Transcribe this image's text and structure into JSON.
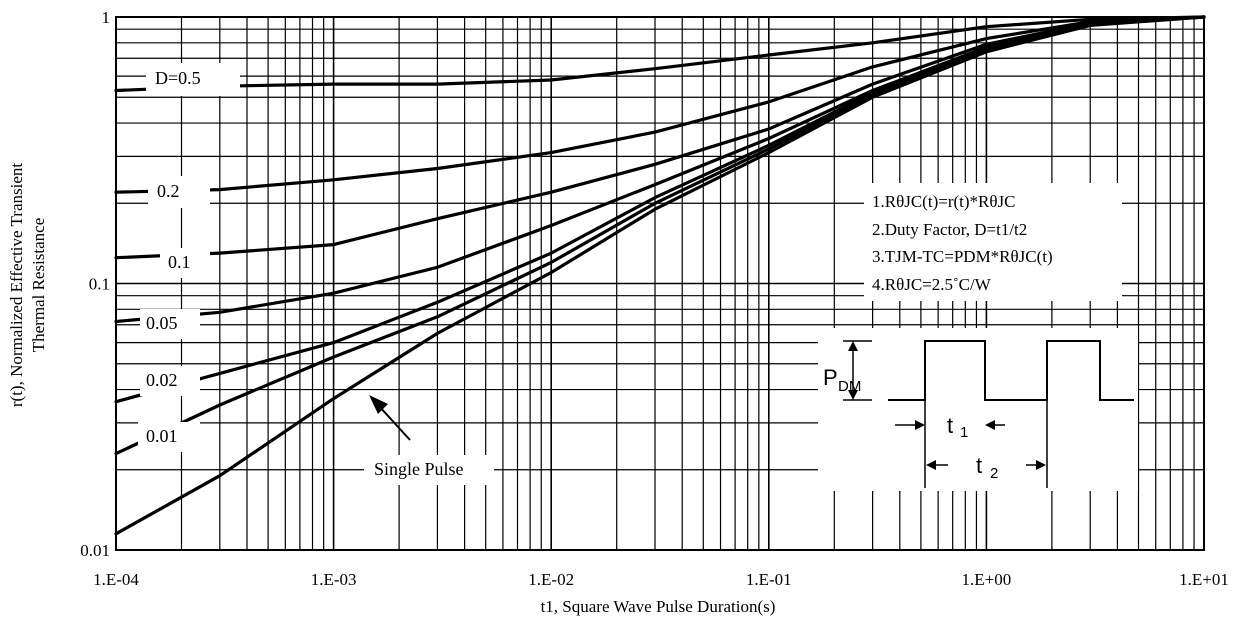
{
  "chart_data": {
    "type": "line",
    "title": "",
    "xlabel": "t1, Square Wave Pulse Duration(s)",
    "ylabel": [
      "r(t), Normalized Effective Transient",
      "Thermal Resistance"
    ],
    "xscale": "log",
    "yscale": "log",
    "xlim": [
      0.0001,
      10
    ],
    "ylim": [
      0.01,
      1
    ],
    "grid": true,
    "x_tick_labels": [
      "1.E-04",
      "1.E-03",
      "1.E-02",
      "1.E-01",
      "1.E+00",
      "1.E+01"
    ],
    "y_tick_labels": [
      "0.01",
      "0.1",
      "1"
    ],
    "series": [
      {
        "name": "D=0.5",
        "points": [
          [
            0.0001,
            0.53
          ],
          [
            0.0003,
            0.55
          ],
          [
            0.001,
            0.56
          ],
          [
            0.003,
            0.56
          ],
          [
            0.01,
            0.58
          ],
          [
            0.03,
            0.64
          ],
          [
            0.1,
            0.72
          ],
          [
            0.3,
            0.8
          ],
          [
            1,
            0.92
          ],
          [
            3,
            0.98
          ],
          [
            10,
            1.0
          ]
        ]
      },
      {
        "name": "0.2",
        "points": [
          [
            0.0001,
            0.22
          ],
          [
            0.0003,
            0.225
          ],
          [
            0.001,
            0.245
          ],
          [
            0.003,
            0.27
          ],
          [
            0.01,
            0.31
          ],
          [
            0.03,
            0.37
          ],
          [
            0.1,
            0.48
          ],
          [
            0.3,
            0.65
          ],
          [
            1,
            0.83
          ],
          [
            3,
            0.96
          ],
          [
            10,
            1.0
          ]
        ]
      },
      {
        "name": "0.1",
        "points": [
          [
            0.0001,
            0.125
          ],
          [
            0.0003,
            0.13
          ],
          [
            0.001,
            0.14
          ],
          [
            0.003,
            0.175
          ],
          [
            0.01,
            0.22
          ],
          [
            0.03,
            0.28
          ],
          [
            0.1,
            0.38
          ],
          [
            0.3,
            0.56
          ],
          [
            1,
            0.79
          ],
          [
            3,
            0.95
          ],
          [
            10,
            1.0
          ]
        ]
      },
      {
        "name": "0.05",
        "points": [
          [
            0.0001,
            0.072
          ],
          [
            0.0003,
            0.078
          ],
          [
            0.001,
            0.092
          ],
          [
            0.003,
            0.115
          ],
          [
            0.01,
            0.165
          ],
          [
            0.03,
            0.235
          ],
          [
            0.1,
            0.35
          ],
          [
            0.3,
            0.53
          ],
          [
            1,
            0.77
          ],
          [
            3,
            0.95
          ],
          [
            10,
            1.0
          ]
        ]
      },
      {
        "name": "0.02",
        "points": [
          [
            0.0001,
            0.036
          ],
          [
            0.0003,
            0.046
          ],
          [
            0.001,
            0.06
          ],
          [
            0.003,
            0.085
          ],
          [
            0.01,
            0.13
          ],
          [
            0.03,
            0.21
          ],
          [
            0.1,
            0.33
          ],
          [
            0.3,
            0.52
          ],
          [
            1,
            0.76
          ],
          [
            3,
            0.94
          ],
          [
            10,
            1.0
          ]
        ]
      },
      {
        "name": "0.01",
        "points": [
          [
            0.0001,
            0.023
          ],
          [
            0.0003,
            0.035
          ],
          [
            0.001,
            0.053
          ],
          [
            0.003,
            0.075
          ],
          [
            0.01,
            0.12
          ],
          [
            0.03,
            0.2
          ],
          [
            0.1,
            0.32
          ],
          [
            0.3,
            0.51
          ],
          [
            1,
            0.75
          ],
          [
            3,
            0.94
          ],
          [
            10,
            1.0
          ]
        ]
      },
      {
        "name": "Single Pulse",
        "points": [
          [
            0.0001,
            0.0115
          ],
          [
            0.0003,
            0.019
          ],
          [
            0.001,
            0.037
          ],
          [
            0.003,
            0.065
          ],
          [
            0.01,
            0.11
          ],
          [
            0.03,
            0.19
          ],
          [
            0.1,
            0.31
          ],
          [
            0.3,
            0.5
          ],
          [
            1,
            0.74
          ],
          [
            3,
            0.93
          ],
          [
            10,
            1.0
          ]
        ]
      }
    ],
    "notes": [
      "1.RθJC(t)=r(t)*RθJC",
      "2.Duty Factor, D=t1/t2",
      "3.TJM-TC=PDM*RθJC(t)",
      "4.RθJC=2.5˚C/W"
    ],
    "inset": {
      "pdm_label": "P",
      "pdm_sub": "DM",
      "t1_label": "t",
      "t1_sub": "1",
      "t2_label": "t",
      "t2_sub": "2"
    }
  }
}
